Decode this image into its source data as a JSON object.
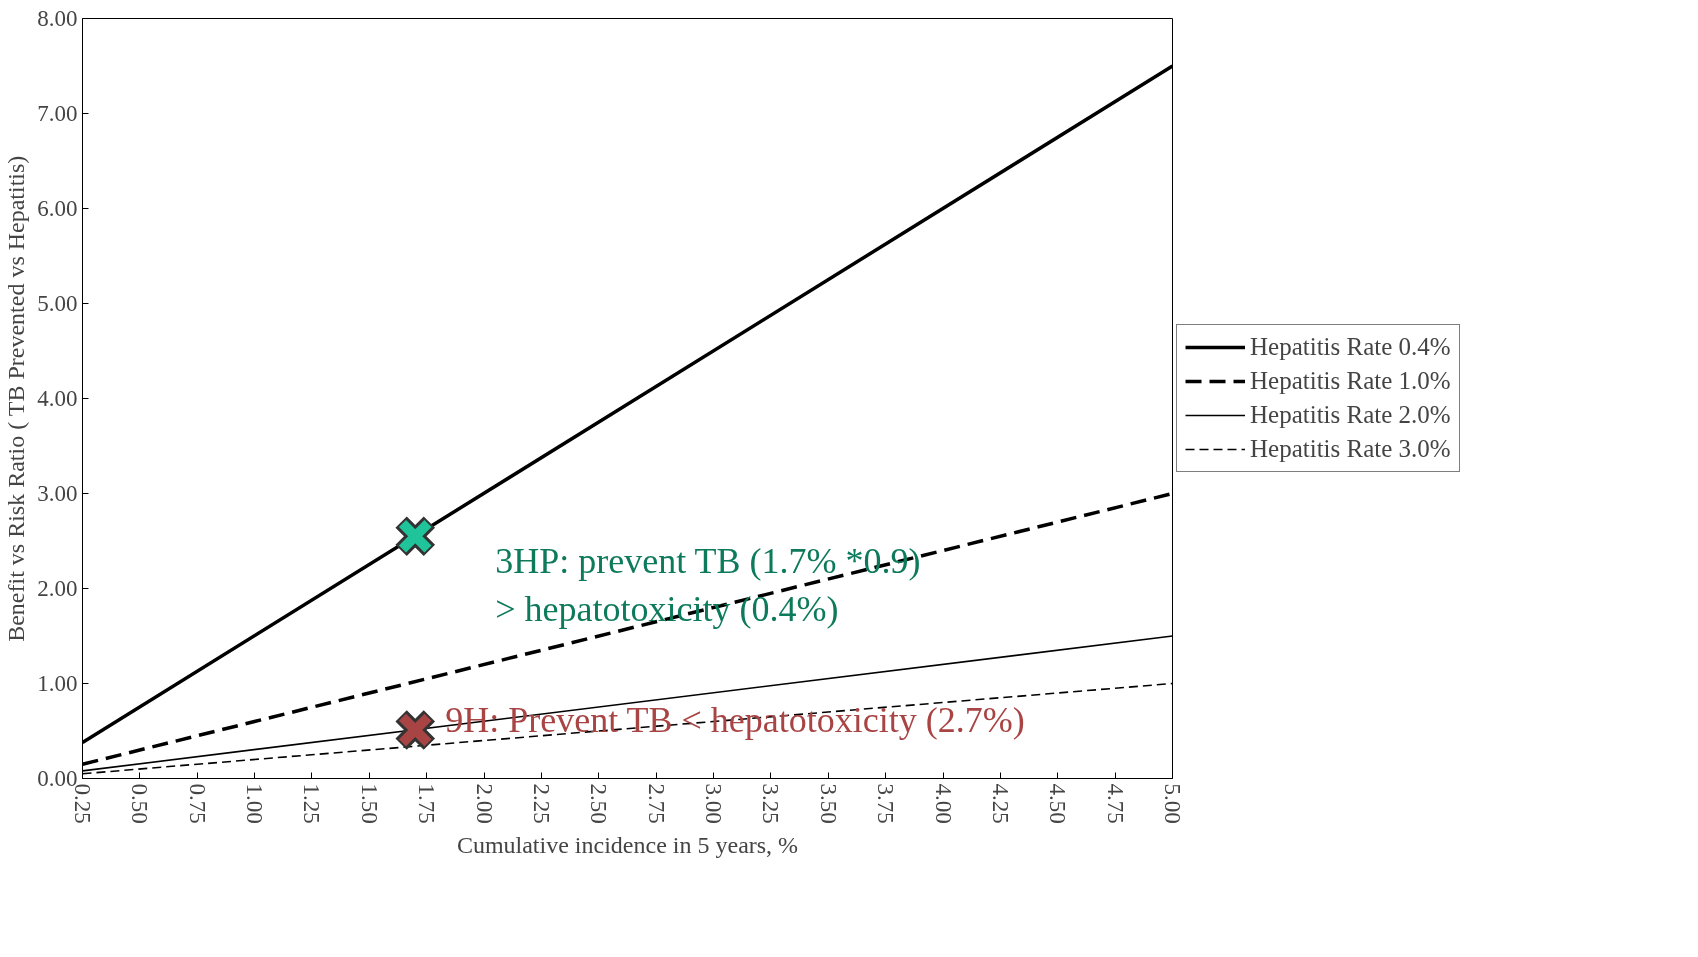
{
  "chart_data": {
    "type": "line",
    "xlabel": "Cumulative incidence in 5 years, %",
    "ylabel": "Benefit vs Risk Ratio ( TB Prevented vs Hepatitis)",
    "x": [
      0.25,
      5.0
    ],
    "series": [
      {
        "name": "Hepatitis Rate 0.4%",
        "color": "#000000",
        "values": [
          0.38,
          7.5
        ],
        "line_style": "solid"
      },
      {
        "name": "Hepatitis Rate 1.0%",
        "color": "#000000",
        "values": [
          0.15,
          3.0
        ],
        "line_style": "dashed"
      },
      {
        "name": "Hepatitis Rate 2.0%",
        "color": "#000000",
        "values": [
          0.08,
          1.5
        ],
        "line_style": "solid"
      },
      {
        "name": "Hepatitis Rate 3.0%",
        "color": "#000000",
        "values": [
          0.05,
          1.0
        ],
        "line_style": "dashed"
      },
      {
        "type": "scatter",
        "x": [
          1.7
        ],
        "values": [
          2.55
        ],
        "color": "#1fc49a",
        "marker": "cross"
      },
      {
        "type": "scatter",
        "x": [
          1.7
        ],
        "values": [
          0.51
        ],
        "color": "#a84444",
        "marker": "cross"
      }
    ],
    "annotations": [
      {
        "text": "3HP: prevent TB (1.7% *0.9)\n > hepatotoxicity (0.4%)",
        "x": 1.7,
        "y": 2.55
      },
      {
        "text": "9H:  Prevent  TB < hepatotoxicity (2.7%)",
        "x": 1.7,
        "y": 0.51
      }
    ],
    "xlim": [
      0.25,
      5.0
    ],
    "xticks": [
      {
        "value": 0.25,
        "label": "0.25"
      },
      {
        "value": 0.5,
        "label": "0.50"
      },
      {
        "value": 0.75,
        "label": "0.75"
      },
      {
        "value": 1.0,
        "label": "1.00"
      },
      {
        "value": 1.25,
        "label": "1.25"
      },
      {
        "value": 1.5,
        "label": "1.50"
      },
      {
        "value": 1.75,
        "label": "1.75"
      },
      {
        "value": 2.0,
        "label": "2.00"
      },
      {
        "value": 2.25,
        "label": "2.25"
      },
      {
        "value": 2.5,
        "label": "2.50"
      },
      {
        "value": 2.75,
        "label": "2.75"
      },
      {
        "value": 3.0,
        "label": "3.00"
      },
      {
        "value": 3.25,
        "label": "3.25"
      },
      {
        "value": 3.5,
        "label": "3.50"
      },
      {
        "value": 3.75,
        "label": "3.75"
      },
      {
        "value": 4.0,
        "label": "4.00"
      },
      {
        "value": 4.25,
        "label": "4.25"
      },
      {
        "value": 4.5,
        "label": "4.50"
      },
      {
        "value": 4.75,
        "label": "4.75"
      },
      {
        "value": 5.0,
        "label": "5.00"
      }
    ],
    "ylim": [
      0,
      8
    ],
    "yticks": [
      {
        "value": 0,
        "label": "0.00"
      },
      {
        "value": 1,
        "label": "1.00"
      },
      {
        "value": 2,
        "label": "2.00"
      },
      {
        "value": 3,
        "label": "3.00"
      },
      {
        "value": 4,
        "label": "4.00"
      },
      {
        "value": 5,
        "label": "5.00"
      },
      {
        "value": 6,
        "label": "6.00"
      },
      {
        "value": 7,
        "label": "7.00"
      },
      {
        "value": 8,
        "label": "8.00"
      }
    ],
    "grid": false,
    "legend": "right"
  }
}
